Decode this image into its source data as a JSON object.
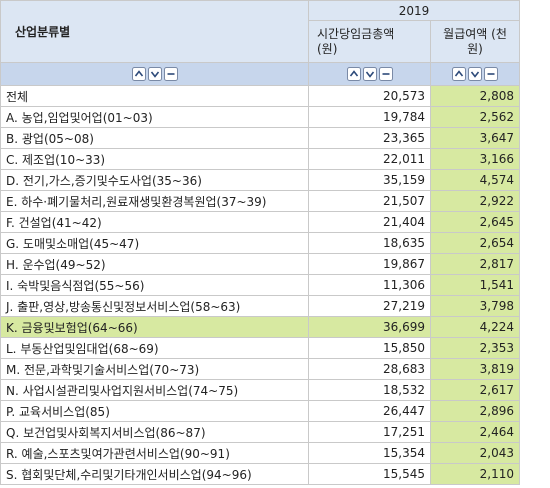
{
  "header": {
    "row_label": "산업분류별",
    "year": "2019",
    "columns": [
      "시간당임금총액\n(원)",
      "월급여액 (천원)"
    ]
  },
  "table": {
    "rows": [
      {
        "label": "전체",
        "values": [
          "20,573",
          "2,808"
        ]
      },
      {
        "label": "A. 농업,임업및어업(01~03)",
        "values": [
          "19,784",
          "2,562"
        ]
      },
      {
        "label": "B. 광업(05~08)",
        "values": [
          "23,365",
          "3,647"
        ]
      },
      {
        "label": "C. 제조업(10~33)",
        "values": [
          "22,011",
          "3,166"
        ]
      },
      {
        "label": "D. 전기,가스,증기및수도사업(35~36)",
        "values": [
          "35,159",
          "4,574"
        ]
      },
      {
        "label": "E. 하수·폐기물처리,원료재생및환경복원업(37~39)",
        "values": [
          "21,507",
          "2,922"
        ]
      },
      {
        "label": "F. 건설업(41~42)",
        "values": [
          "21,404",
          "2,645"
        ]
      },
      {
        "label": "G. 도매및소매업(45~47)",
        "values": [
          "18,635",
          "2,654"
        ]
      },
      {
        "label": "H. 운수업(49~52)",
        "values": [
          "19,867",
          "2,817"
        ]
      },
      {
        "label": "I. 숙박및음식점업(55~56)",
        "values": [
          "11,306",
          "1,541"
        ]
      },
      {
        "label": "J. 출판,영상,방송통신및정보서비스업(58~63)",
        "values": [
          "27,219",
          "3,798"
        ]
      },
      {
        "label": "K. 금융및보험업(64~66)",
        "values": [
          "36,699",
          "4,224"
        ],
        "highlighted": true
      },
      {
        "label": "L. 부동산업및임대업(68~69)",
        "values": [
          "15,850",
          "2,353"
        ]
      },
      {
        "label": "M. 전문,과학및기술서비스업(70~73)",
        "values": [
          "28,683",
          "3,819"
        ]
      },
      {
        "label": "N. 사업시설관리및사업지원서비스업(74~75)",
        "values": [
          "18,532",
          "2,617"
        ]
      },
      {
        "label": "P. 교육서비스업(85)",
        "values": [
          "26,447",
          "2,896"
        ]
      },
      {
        "label": "Q. 보건업및사회복지서비스업(86~87)",
        "values": [
          "17,251",
          "2,464"
        ]
      },
      {
        "label": "R. 예술,스포츠및여가관련서비스업(90~91)",
        "values": [
          "15,354",
          "2,043"
        ]
      },
      {
        "label": "S. 협회및단체,수리및기타개인서비스업(94~96)",
        "values": [
          "15,545",
          "2,110"
        ]
      }
    ]
  }
}
